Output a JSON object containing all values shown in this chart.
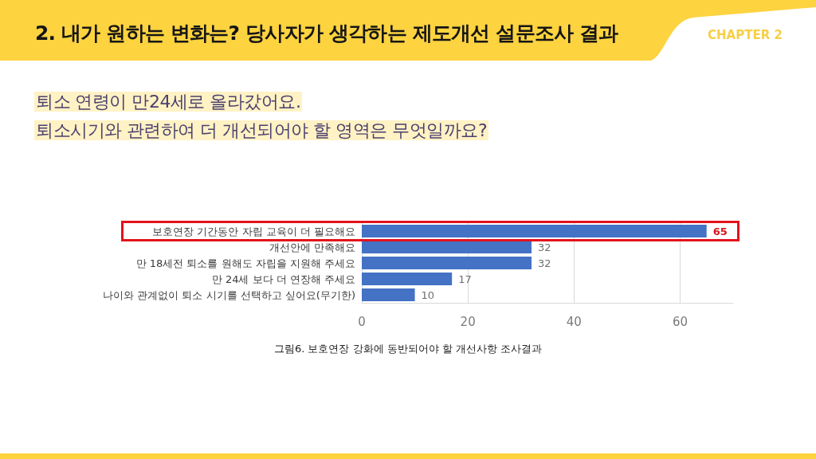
{
  "chart_data": {
    "type": "bar",
    "orientation": "horizontal",
    "title": "2. 내가 원하는 변화는? 당사자가 생각하는 제도개선 설문조사 결과",
    "subtitle": "퇴소 연령이 만24세로 올라갔어요.\n퇴소시기와 관련하여 더 개선되어야 할 영역은 무엇일까요?",
    "annotations": [
      "CHAPTER 2",
      "그림6. 보호연장 강화에 동반되어야 할 개선사항 조사결과"
    ],
    "categories": [
      "보호연장 기간동안 자립 교육이 더 필요해요",
      "개선안에 만족해요",
      "만 18세전 퇴소를 원해도 자립을 지원해 주세요",
      "만 24세 보다 더 연장해 주세요",
      "나이와 관계없이 퇴소 시기를 선택하고 싶어요(무기한)"
    ],
    "values": [
      65,
      32,
      32,
      17,
      10
    ],
    "color": "#4472c4",
    "xlim": [
      0,
      70
    ],
    "xticks": [
      0,
      20,
      40,
      60
    ],
    "grid": "x",
    "data_labels": true
  }
}
